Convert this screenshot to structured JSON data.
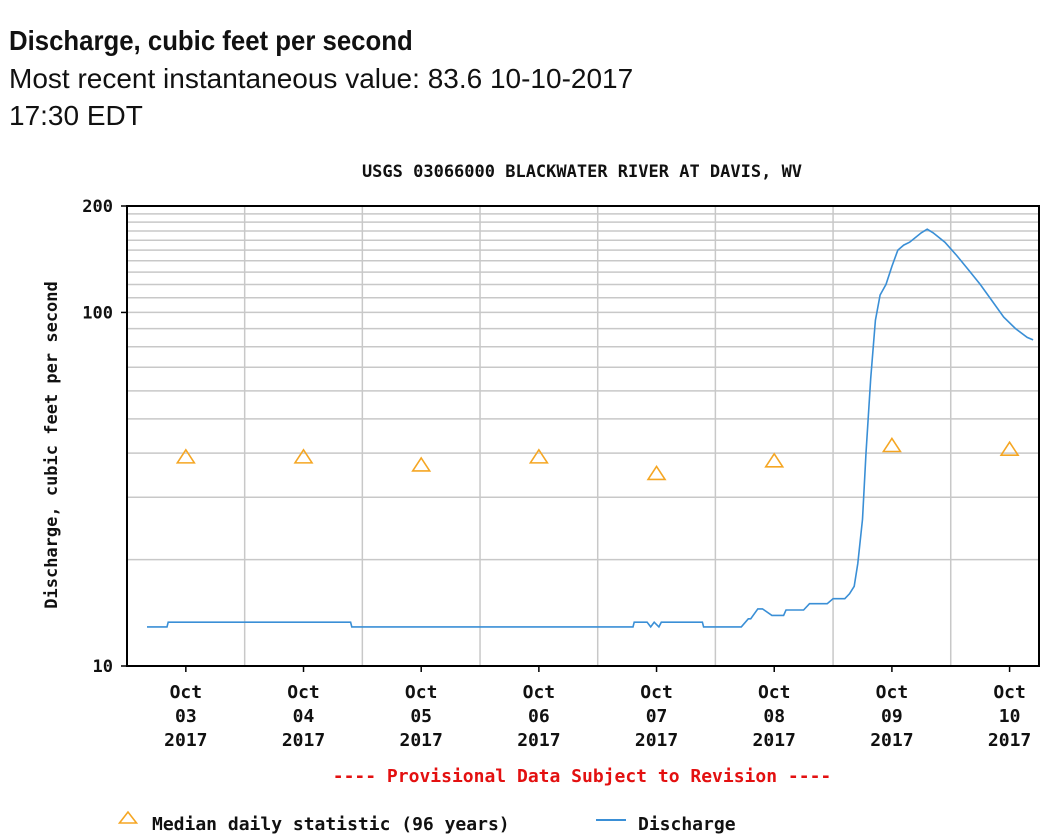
{
  "header": {
    "title": "Discharge, cubic feet per second",
    "subtitle": "Most recent instantaneous value: 83.6 10-10-2017   17:30 EDT"
  },
  "chart_data": {
    "type": "line",
    "title": "USGS 03066000 BLACKWATER RIVER AT DAVIS, WV",
    "ylabel": "Discharge, cubic feet per second",
    "xlabel": "",
    "yscale": "log",
    "ylim": [
      10,
      200
    ],
    "xlim": [
      0.5,
      8.25
    ],
    "ytick_labels": [
      "10",
      "100",
      "200"
    ],
    "xtick_labels": [
      [
        "Oct",
        "03",
        "2017"
      ],
      [
        "Oct",
        "04",
        "2017"
      ],
      [
        "Oct",
        "05",
        "2017"
      ],
      [
        "Oct",
        "06",
        "2017"
      ],
      [
        "Oct",
        "07",
        "2017"
      ],
      [
        "Oct",
        "08",
        "2017"
      ],
      [
        "Oct",
        "09",
        "2017"
      ],
      [
        "Oct",
        "10",
        "2017"
      ]
    ],
    "grid": true,
    "note": "---- Provisional Data Subject to Revision ----",
    "legend_position": "bottom",
    "colors": {
      "discharge": "#3a8fd6",
      "median": "#f5a623",
      "note": "#e31010"
    },
    "series": [
      {
        "name": "Median daily statistic (96 years)",
        "kind": "marker",
        "x": [
          1,
          2,
          3,
          4,
          5,
          6,
          7,
          8
        ],
        "y": [
          39,
          39,
          37,
          39,
          35,
          38,
          42,
          41
        ]
      },
      {
        "name": "Discharge",
        "kind": "line",
        "x": [
          0.67,
          0.84,
          0.85,
          1.5,
          2.0,
          2.4,
          2.41,
          3.0,
          4.0,
          4.8,
          4.81,
          4.92,
          4.95,
          4.98,
          5.02,
          5.04,
          5.1,
          5.39,
          5.4,
          5.72,
          5.78,
          5.8,
          5.86,
          5.9,
          5.98,
          6.08,
          6.1,
          6.25,
          6.3,
          6.45,
          6.5,
          6.6,
          6.64,
          6.68,
          6.71,
          6.75,
          6.78,
          6.82,
          6.86,
          6.9,
          6.95,
          7.0,
          7.05,
          7.1,
          7.15,
          7.25,
          7.3,
          7.35,
          7.45,
          7.55,
          7.65,
          7.75,
          7.85,
          7.95,
          8.05,
          8.15,
          8.2
        ],
        "y": [
          12.9,
          12.9,
          13.3,
          13.3,
          13.3,
          13.3,
          12.9,
          12.9,
          12.9,
          12.9,
          13.3,
          13.3,
          12.9,
          13.3,
          12.9,
          13.3,
          13.3,
          13.3,
          12.9,
          12.9,
          13.6,
          13.6,
          14.5,
          14.5,
          13.9,
          13.9,
          14.4,
          14.4,
          15.0,
          15.0,
          15.5,
          15.5,
          16.0,
          16.8,
          19.5,
          26,
          40,
          65,
          95,
          112,
          120,
          135,
          150,
          155,
          158,
          168,
          172,
          168,
          158,
          145,
          132,
          120,
          108,
          97,
          90,
          85,
          83.6
        ]
      }
    ]
  }
}
